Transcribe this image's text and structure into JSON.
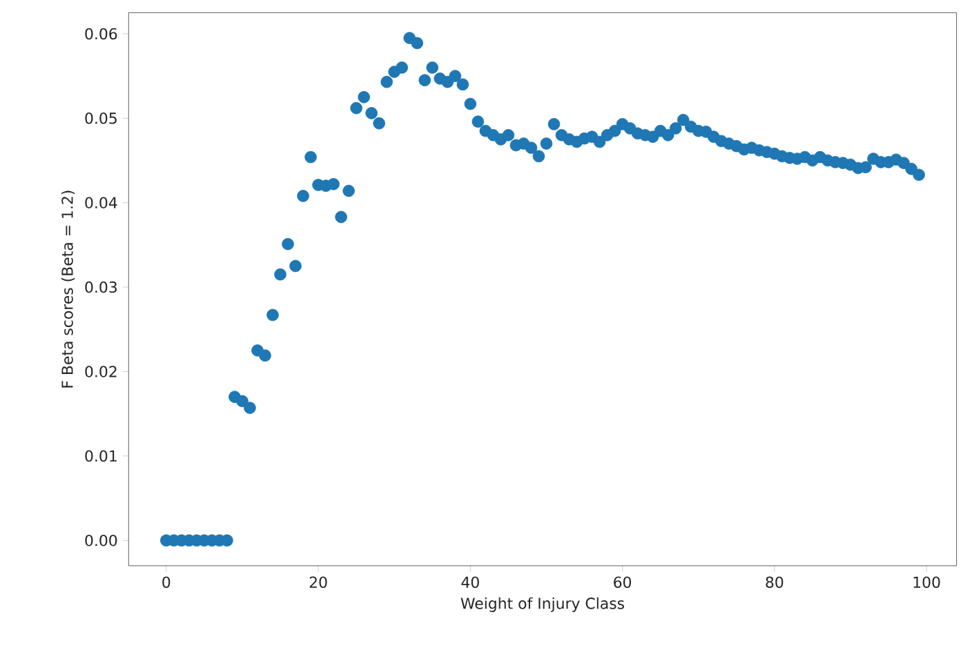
{
  "chart_data": {
    "type": "scatter",
    "xlabel": "Weight of Injury Class",
    "ylabel": "F Beta scores (Beta = 1.2)",
    "marker": "circle",
    "color": "#1f77b4",
    "x": [
      0,
      1,
      2,
      3,
      4,
      5,
      6,
      7,
      8,
      9,
      10,
      11,
      12,
      13,
      14,
      15,
      16,
      17,
      18,
      19,
      20,
      21,
      22,
      23,
      24,
      25,
      26,
      27,
      28,
      29,
      30,
      31,
      32,
      33,
      34,
      35,
      36,
      37,
      38,
      39,
      40,
      41,
      42,
      43,
      44,
      45,
      46,
      47,
      48,
      49,
      50,
      51,
      52,
      53,
      54,
      55,
      56,
      57,
      58,
      59,
      60,
      61,
      62,
      63,
      64,
      65,
      66,
      67,
      68,
      69,
      70,
      71,
      72,
      73,
      74,
      75,
      76,
      77,
      78,
      79,
      80,
      81,
      82,
      83,
      84,
      85,
      86,
      87,
      88,
      89,
      90,
      91,
      92,
      93,
      94,
      95,
      96,
      97,
      98,
      99
    ],
    "values": [
      0,
      0,
      0,
      0,
      0,
      0,
      0,
      0,
      0,
      0.017,
      0.0165,
      0.0157,
      0.0225,
      0.0219,
      0.0267,
      0.0315,
      0.0351,
      0.0325,
      0.0408,
      0.0454,
      0.0421,
      0.042,
      0.0422,
      0.0383,
      0.0414,
      0.0512,
      0.0525,
      0.0506,
      0.0494,
      0.0543,
      0.0555,
      0.056,
      0.0595,
      0.0589,
      0.0545,
      0.056,
      0.0547,
      0.0543,
      0.055,
      0.054,
      0.0517,
      0.0496,
      0.0485,
      0.048,
      0.0475,
      0.048,
      0.0468,
      0.047,
      0.0465,
      0.0455,
      0.047,
      0.0493,
      0.048,
      0.0475,
      0.0472,
      0.0476,
      0.0478,
      0.0472,
      0.048,
      0.0485,
      0.0493,
      0.0488,
      0.0482,
      0.048,
      0.0478,
      0.0485,
      0.048,
      0.0488,
      0.0498,
      0.049,
      0.0485,
      0.0484,
      0.0478,
      0.0473,
      0.047,
      0.0467,
      0.0463,
      0.0465,
      0.0462,
      0.046,
      0.0458,
      0.0455,
      0.0453,
      0.0452,
      0.0454,
      0.045,
      0.0454,
      0.045,
      0.0448,
      0.0447,
      0.0445,
      0.0441,
      0.0442,
      0.0452,
      0.0448,
      0.0448,
      0.0451,
      0.0447,
      0.044,
      0.0433
    ],
    "xlim": [
      -4.95,
      103.95
    ],
    "ylim": [
      -0.003,
      0.0625
    ],
    "xticks": [
      0,
      20,
      40,
      60,
      80,
      100
    ],
    "yticks": [
      {
        "value": 0,
        "label": "0.00"
      },
      {
        "value": 0.01,
        "label": "0.01"
      },
      {
        "value": 0.02,
        "label": "0.02"
      },
      {
        "value": 0.03,
        "label": "0.03"
      },
      {
        "value": 0.04,
        "label": "0.04"
      },
      {
        "value": 0.05,
        "label": "0.05"
      },
      {
        "value": 0.06,
        "label": "0.06"
      }
    ]
  }
}
